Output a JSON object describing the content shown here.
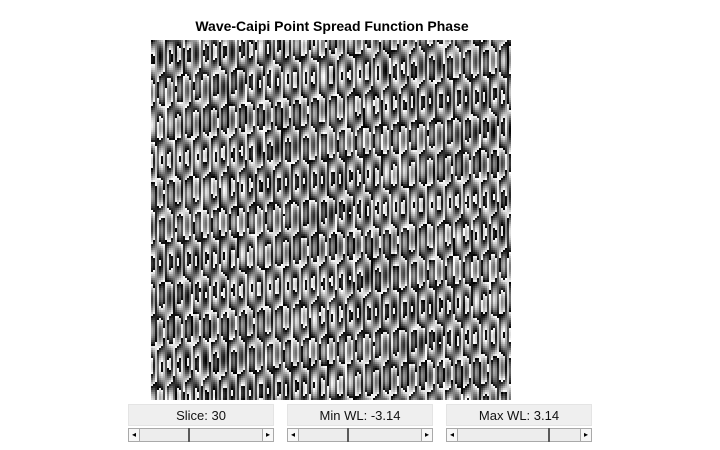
{
  "figure": {
    "title": "Wave-Caipi Point Spread Function Phase"
  },
  "controls": [
    {
      "label": "Slice: 30",
      "position": 0.4
    },
    {
      "label": "Min WL: -3.14",
      "position": 0.4
    },
    {
      "label": "Max WL: 3.14",
      "position": 0.75
    }
  ],
  "icons": {
    "left_arrow": "◂",
    "right_arrow": "▸"
  }
}
